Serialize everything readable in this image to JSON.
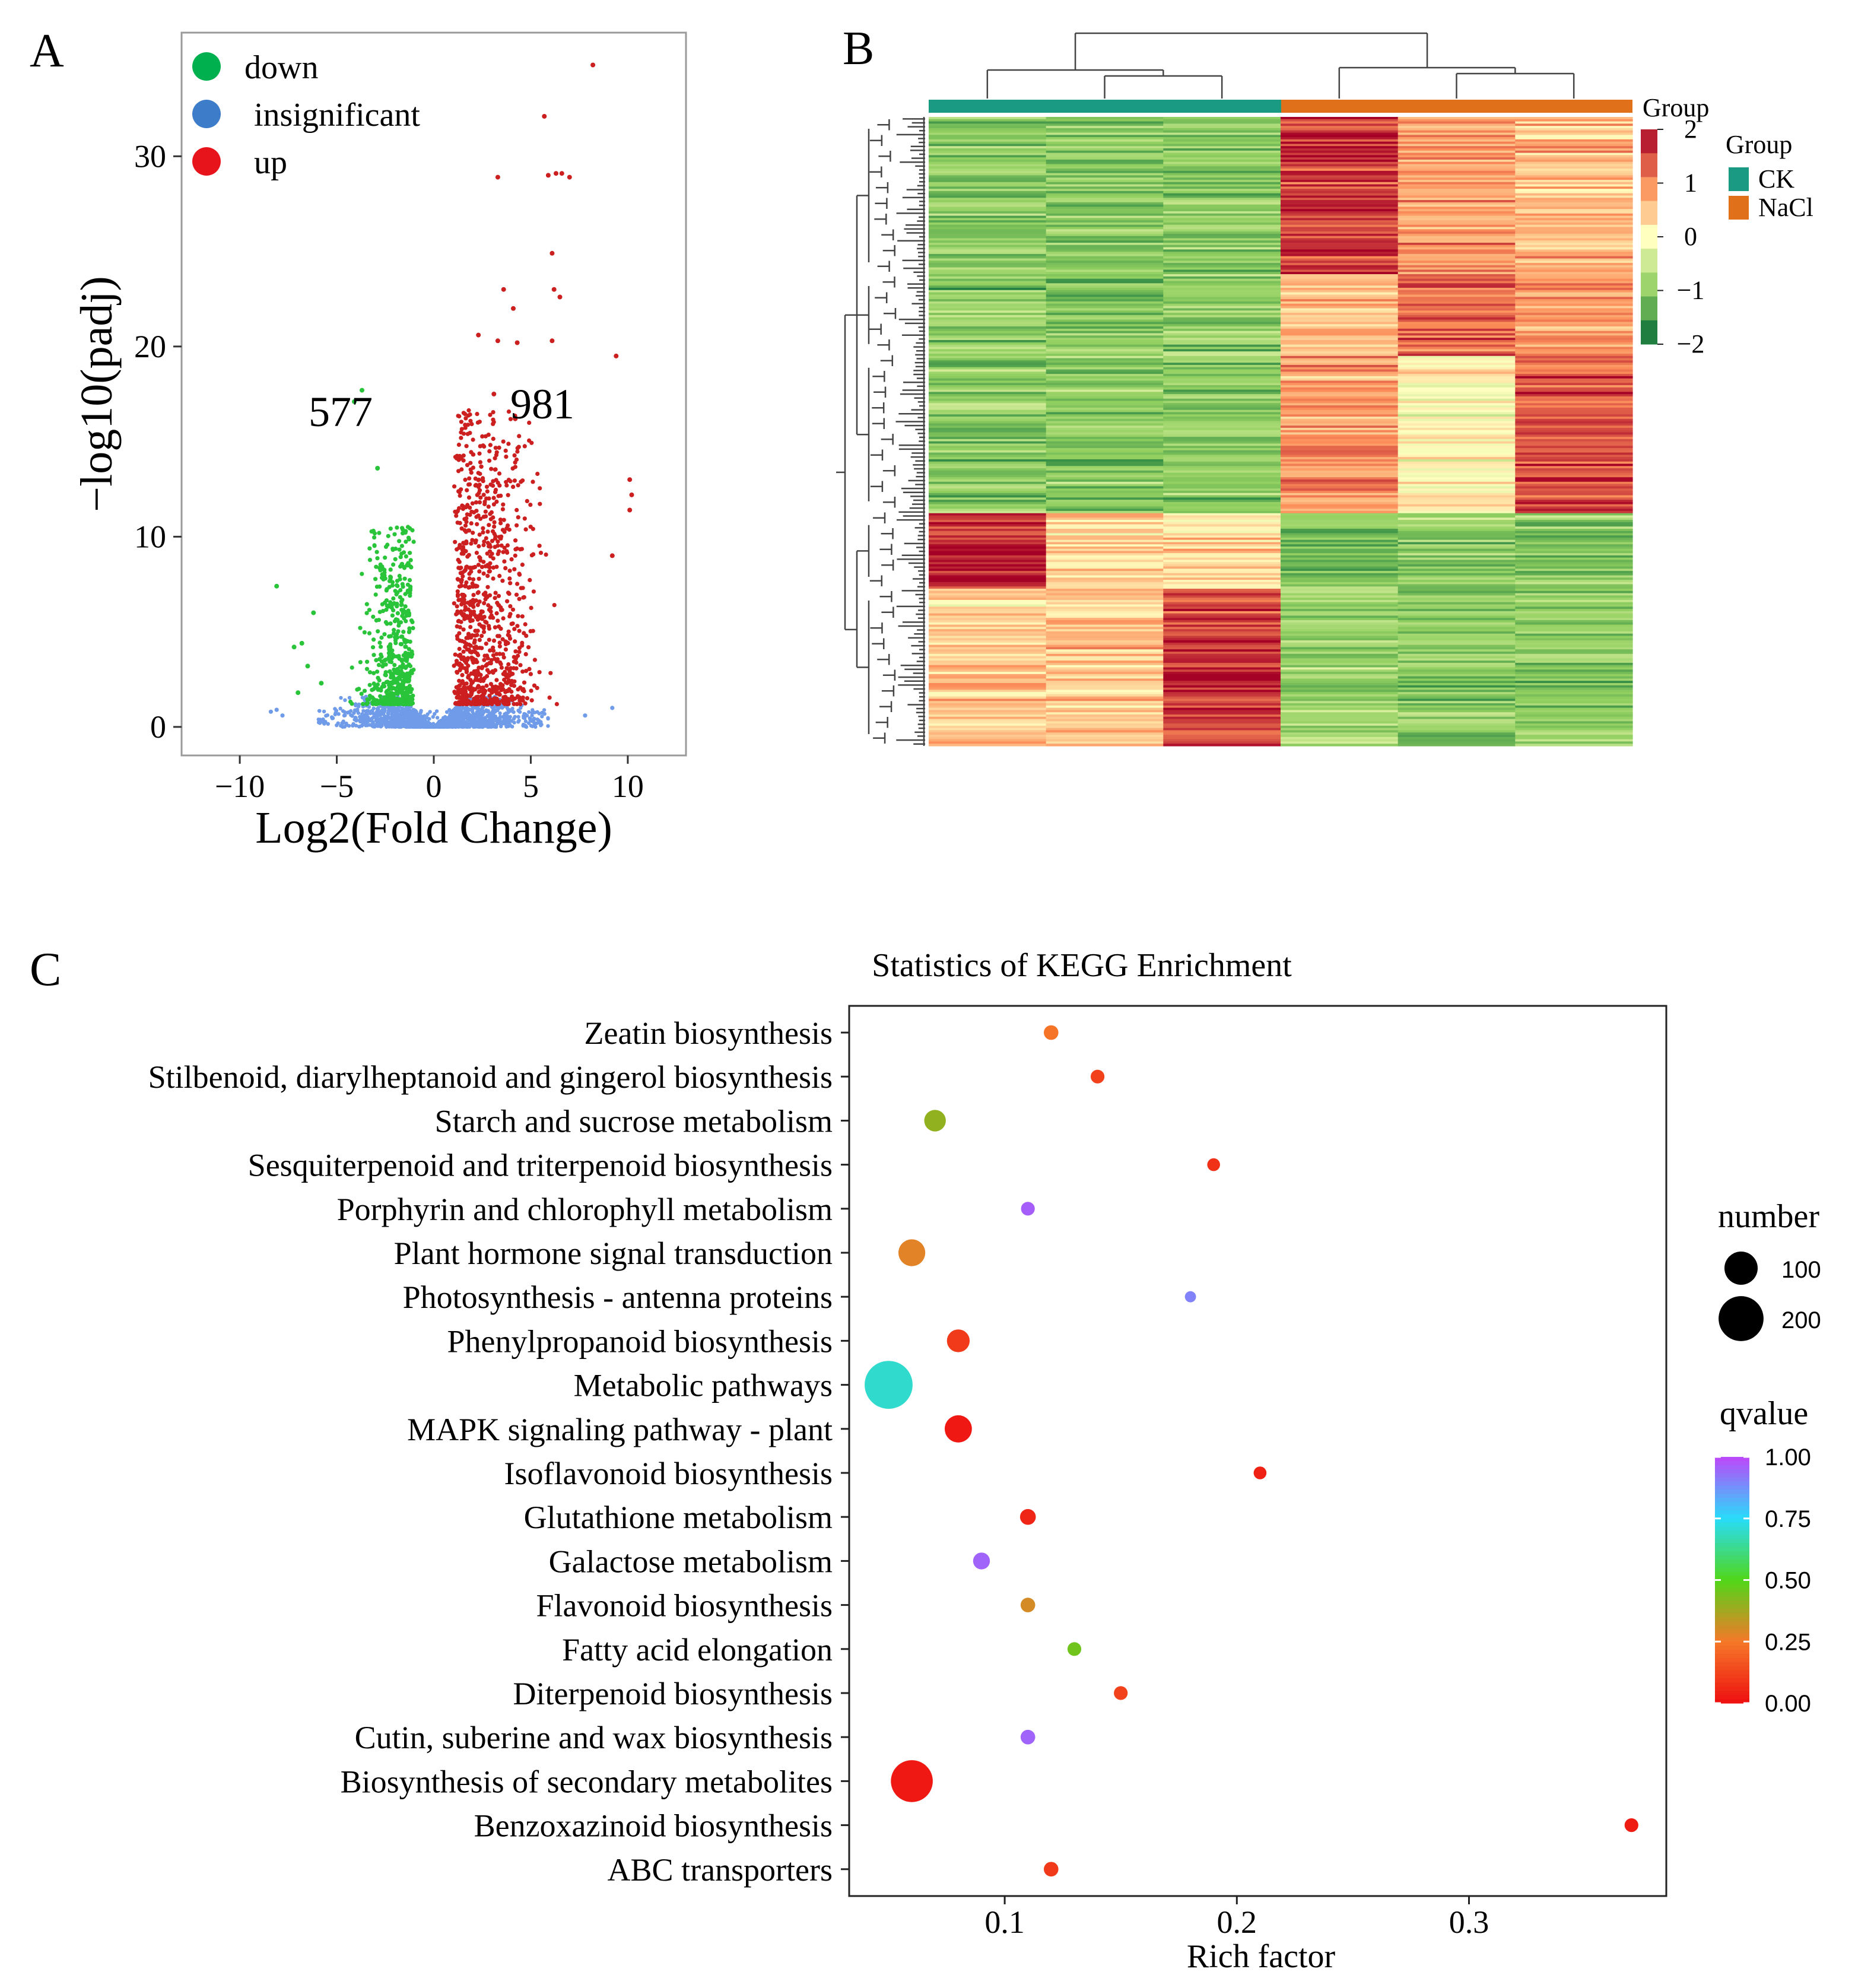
{
  "panels": {
    "a": {
      "label": "A"
    },
    "b": {
      "label": "B"
    },
    "c": {
      "label": "C"
    }
  },
  "chart_data": [
    {
      "type": "scatter",
      "name": "volcano",
      "xlabel": "Log2(Fold Change)",
      "ylabel": "−log10(padj)",
      "xlim": [
        -13,
        13
      ],
      "ylim": [
        -1.5,
        36.5
      ],
      "xticks": [
        -10,
        -5,
        0,
        5,
        10
      ],
      "xtick_labels": [
        "−10",
        "−5",
        "0",
        "5",
        "10"
      ],
      "yticks": [
        0,
        10,
        20,
        30
      ],
      "ytick_labels": [
        "0",
        "10",
        "20",
        "30"
      ],
      "legend": [
        {
          "label": "down",
          "color": "#00b04f"
        },
        {
          "label": "insignificant",
          "color": "#3d7cc9"
        },
        {
          "label": "up",
          "color": "#e8141c"
        }
      ],
      "point_colors": {
        "down": "#29c439",
        "insignificant": "#6f9be8",
        "up": "#cc1f1f"
      },
      "annotations": [
        {
          "text": "577",
          "x": -6.4,
          "y": 16.4
        },
        {
          "text": "981",
          "x": 5.7,
          "y": 16.8
        }
      ],
      "up_points": [
        [
          8.2,
          34.8
        ],
        [
          5.7,
          32.1
        ],
        [
          5.9,
          29.0
        ],
        [
          6.3,
          29.1
        ],
        [
          6.6,
          29.1
        ],
        [
          7.0,
          28.9
        ],
        [
          3.3,
          28.9
        ],
        [
          6.1,
          24.9
        ],
        [
          3.6,
          23.0
        ],
        [
          6.2,
          23.0
        ],
        [
          6.5,
          22.6
        ],
        [
          4.1,
          22.0
        ],
        [
          2.3,
          20.6
        ],
        [
          3.3,
          20.3
        ],
        [
          4.3,
          20.2
        ],
        [
          6.1,
          20.3
        ],
        [
          9.4,
          19.5
        ],
        [
          3.1,
          17.5
        ],
        [
          4.2,
          16.2
        ],
        [
          10.1,
          13.0
        ],
        [
          10.2,
          12.2
        ],
        [
          10.1,
          11.4
        ],
        [
          9.2,
          9.0
        ]
      ],
      "down_points": [
        [
          -3.7,
          17.7
        ],
        [
          -4.1,
          17.1
        ],
        [
          -2.9,
          13.6
        ],
        [
          -8.1,
          7.4
        ],
        [
          -6.8,
          4.4
        ],
        [
          -7.2,
          4.2
        ],
        [
          -6.5,
          3.2
        ],
        [
          -7.0,
          1.8
        ],
        [
          -5.8,
          2.3
        ],
        [
          -6.2,
          6.0
        ]
      ],
      "insignificant_points": [
        [
          -8.4,
          0.8
        ],
        [
          -8.1,
          0.9
        ],
        [
          -7.8,
          0.6
        ],
        [
          7.8,
          0.6
        ],
        [
          9.2,
          1.0
        ]
      ],
      "counts": {
        "down": 577,
        "up": 981
      }
    },
    {
      "type": "heatmap",
      "name": "cluster-heatmap",
      "columns": 6,
      "group_title_top": "Group",
      "group_legend_title": "Group",
      "groups": [
        {
          "label": "CK",
          "color": "#1a9a82",
          "columns": [
            0,
            1,
            2
          ]
        },
        {
          "label": "NaCl",
          "color": "#e0701a",
          "columns": [
            3,
            4,
            5
          ]
        }
      ],
      "scale": {
        "min": -2,
        "max": 2,
        "ticks": [
          2,
          1,
          0,
          -1,
          -2
        ],
        "tick_labels": [
          "2",
          "1",
          "0",
          "−1",
          "−2"
        ]
      },
      "colors_low_mid_high": [
        "#006837",
        "#ffffbf",
        "#a50026"
      ],
      "row_blocks": [
        {
          "rows": 0.25,
          "means": [
            -1.0,
            -1.0,
            -1.0,
            1.6,
            0.8,
            0.6
          ]
        },
        {
          "rows": 0.13,
          "means": [
            -1.0,
            -1.05,
            -1.0,
            0.6,
            1.3,
            0.9
          ]
        },
        {
          "rows": 0.25,
          "means": [
            -1.0,
            -1.0,
            -1.0,
            0.9,
            0.1,
            1.4
          ]
        },
        {
          "rows": 0.12,
          "means": [
            1.7,
            0.5,
            0.3,
            -1.0,
            -1.0,
            -1.0
          ]
        },
        {
          "rows": 0.25,
          "means": [
            0.4,
            0.5,
            1.6,
            -1.0,
            -1.0,
            -1.0
          ]
        }
      ]
    },
    {
      "type": "scatter",
      "name": "kegg-bubble",
      "title": "Statistics of KEGG Enrichment",
      "xlabel": "Rich factor",
      "xlim": [
        0.033,
        0.385
      ],
      "xticks": [
        0.1,
        0.2,
        0.3
      ],
      "xtick_labels": [
        "0.1",
        "0.2",
        "0.3"
      ],
      "size_legend_title": "number",
      "size_legend": [
        {
          "label": "100",
          "value": 100
        },
        {
          "label": "200",
          "value": 200
        }
      ],
      "color_legend_title": "qvalue",
      "color_ticks": [
        1.0,
        0.75,
        0.5,
        0.25,
        0.0
      ],
      "color_tick_labels": [
        "1.00",
        "0.75",
        "0.50",
        "0.25",
        "0.00"
      ],
      "categories": [
        "Zeatin biosynthesis",
        "Stilbenoid, diarylheptanoid and gingerol biosynthesis",
        "Starch and sucrose metabolism",
        "Sesquiterpenoid and triterpenoid biosynthesis",
        "Porphyrin and chlorophyll metabolism",
        "Plant hormone signal transduction",
        "Photosynthesis - antenna proteins",
        "Phenylpropanoid biosynthesis",
        "Metabolic pathways",
        "MAPK signaling pathway - plant",
        "Isoflavonoid biosynthesis",
        "Glutathione metabolism",
        "Galactose metabolism",
        "Flavonoid biosynthesis",
        "Fatty acid elongation",
        "Diterpenoid biosynthesis",
        "Cutin, suberine and wax biosynthesis",
        "Biosynthesis of secondary metabolites",
        "Benzoxazinoid biosynthesis",
        "ABC transporters"
      ],
      "points": [
        {
          "rich": 0.12,
          "number": 12,
          "qvalue": 0.24
        },
        {
          "rich": 0.14,
          "number": 10,
          "qvalue": 0.12
        },
        {
          "rich": 0.07,
          "number": 35,
          "qvalue": 0.4
        },
        {
          "rich": 0.19,
          "number": 8,
          "qvalue": 0.08
        },
        {
          "rich": 0.11,
          "number": 10,
          "qvalue": 0.96
        },
        {
          "rich": 0.06,
          "number": 60,
          "qvalue": 0.28
        },
        {
          "rich": 0.18,
          "number": 5,
          "qvalue": 0.9
        },
        {
          "rich": 0.08,
          "number": 40,
          "qvalue": 0.1
        },
        {
          "rich": 0.05,
          "number": 230,
          "qvalue": 0.7
        },
        {
          "rich": 0.08,
          "number": 62,
          "qvalue": 0.02
        },
        {
          "rich": 0.21,
          "number": 8,
          "qvalue": 0.04
        },
        {
          "rich": 0.11,
          "number": 15,
          "qvalue": 0.05
        },
        {
          "rich": 0.09,
          "number": 18,
          "qvalue": 0.95
        },
        {
          "rich": 0.11,
          "number": 12,
          "qvalue": 0.3
        },
        {
          "rich": 0.13,
          "number": 10,
          "qvalue": 0.45
        },
        {
          "rich": 0.15,
          "number": 10,
          "qvalue": 0.12
        },
        {
          "rich": 0.11,
          "number": 12,
          "qvalue": 0.95
        },
        {
          "rich": 0.06,
          "number": 170,
          "qvalue": 0.02
        },
        {
          "rich": 0.37,
          "number": 10,
          "qvalue": 0.03
        },
        {
          "rich": 0.12,
          "number": 12,
          "qvalue": 0.1
        }
      ]
    }
  ]
}
